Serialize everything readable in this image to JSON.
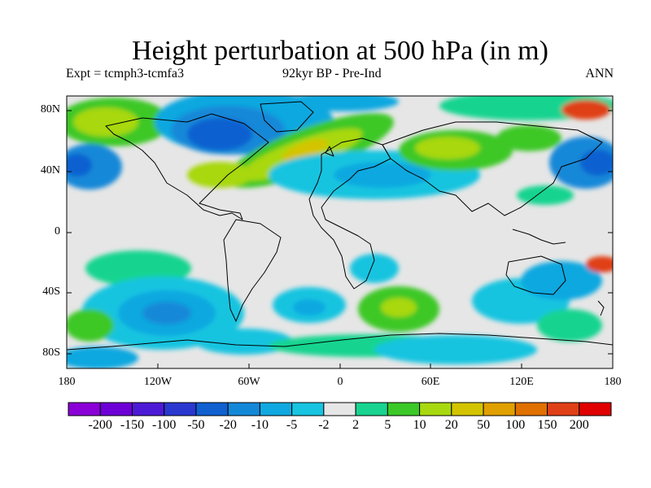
{
  "title": "Height perturbation at 500 hPa (in m)",
  "subtitle_left": "Expt = tcmph3-tcmfa3",
  "subtitle_center": "92kyr BP - Pre-Ind",
  "subtitle_right": "ANN",
  "lat_ticks": [
    "80N",
    "40N",
    "0",
    "40S",
    "80S"
  ],
  "lon_ticks": [
    "180",
    "120W",
    "60W",
    "0",
    "60E",
    "120E",
    "180"
  ],
  "colorbar": {
    "labels": [
      "-200",
      "-150",
      "-100",
      "-50",
      "-20",
      "-10",
      "-5",
      "-2",
      "2",
      "5",
      "10",
      "20",
      "50",
      "100",
      "150",
      "200"
    ],
    "colors": [
      "#8a00d6",
      "#6c00d6",
      "#4c1ad6",
      "#2a38d0",
      "#1060d0",
      "#1488d8",
      "#10a8e0",
      "#18c4e0",
      "#e6e6e6",
      "#18d490",
      "#3cc828",
      "#a8d810",
      "#d4c400",
      "#e0a000",
      "#e07000",
      "#e04018",
      "#e00000"
    ]
  },
  "palette": {
    "background": "#e6e6e6",
    "land_outline": "#000000"
  }
}
